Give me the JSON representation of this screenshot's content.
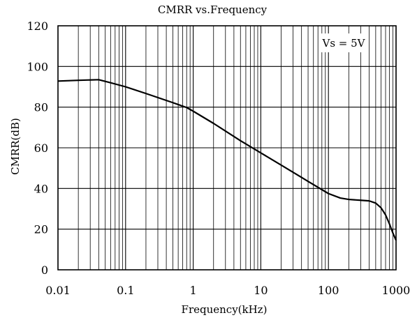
{
  "chart_data": {
    "type": "line",
    "title": "CMRR vs.Frequency",
    "xlabel": "Frequency(kHz)",
    "ylabel": "CMRR(dB)",
    "x_scale": "log",
    "xlim": [
      0.01,
      1000
    ],
    "ylim": [
      0,
      120
    ],
    "grid": true,
    "legend": "none",
    "annotation": "Vs = 5V",
    "x_ticks": [
      0.01,
      0.1,
      1,
      10,
      100,
      1000
    ],
    "x_tick_labels": [
      "0.01",
      "0.1",
      "1",
      "10",
      "100",
      "1000"
    ],
    "y_ticks": [
      0,
      20,
      40,
      60,
      80,
      100,
      120
    ],
    "y_tick_labels": [
      "0",
      "20",
      "40",
      "60",
      "80",
      "100",
      "120"
    ],
    "line_color": "#000000",
    "series": [
      {
        "x": [
          0.01,
          0.02,
          0.04,
          0.06,
          0.1,
          0.2,
          0.5,
          0.8,
          1,
          2,
          5,
          10,
          20,
          50,
          100,
          150,
          200,
          300,
          400,
          500,
          600,
          700,
          800,
          900,
          1000
        ],
        "y": [
          92.8,
          93.2,
          93.5,
          92.0,
          90.0,
          86.7,
          82.2,
          79.8,
          78.0,
          72.0,
          63.5,
          57.5,
          51.5,
          43.5,
          37.5,
          35.3,
          34.6,
          34.2,
          33.9,
          32.8,
          30.5,
          27.0,
          22.5,
          18.0,
          14.5
        ]
      }
    ]
  }
}
